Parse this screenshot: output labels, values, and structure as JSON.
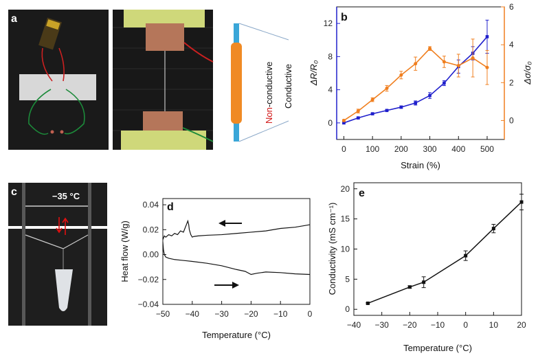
{
  "panels": {
    "a": {
      "label": "a",
      "non_conductive_prefix": "Non",
      "non_conductive_suffix": "-conductive",
      "conductive": "Conductive"
    },
    "c": {
      "label": "c",
      "temperature": "−35 °C"
    }
  },
  "chart_data": [
    {
      "id": "b",
      "type": "line",
      "panel_label": "b",
      "xlabel": "Strain (%)",
      "xlim": [
        -25,
        560
      ],
      "xticks": [
        0,
        100,
        200,
        300,
        400,
        500
      ],
      "ylabel_left": "ΔR/R₀",
      "ylim_left": [
        -2,
        14
      ],
      "yticks_left": [
        0,
        4,
        8,
        12
      ],
      "ylabel_right": "Δσ/σ₀",
      "ylim_right": [
        -1,
        6
      ],
      "yticks_right": [
        0,
        2,
        4,
        6
      ],
      "colors": {
        "left": "#1f1fcc",
        "right": "#f07f1f"
      },
      "series": [
        {
          "axis": "left",
          "x": [
            0,
            50,
            100,
            150,
            200,
            250,
            300,
            350,
            400,
            450,
            500
          ],
          "y": [
            0,
            0.6,
            1.1,
            1.5,
            1.9,
            2.4,
            3.3,
            4.8,
            6.8,
            8.4,
            10.4
          ],
          "err": [
            0.1,
            0.1,
            0.1,
            0.1,
            0.15,
            0.25,
            0.35,
            0.3,
            0.8,
            0.8,
            2.0
          ]
        },
        {
          "axis": "right",
          "x": [
            0,
            50,
            100,
            150,
            200,
            250,
            300,
            350,
            400,
            450,
            500
          ],
          "y": [
            0,
            0.5,
            1.1,
            1.7,
            2.4,
            3.0,
            3.8,
            3.1,
            2.9,
            3.3,
            2.8
          ],
          "err": [
            0.05,
            0.1,
            0.1,
            0.15,
            0.2,
            0.35,
            0.1,
            0.3,
            0.6,
            1.0,
            0.9
          ]
        }
      ]
    },
    {
      "id": "d",
      "type": "line",
      "panel_label": "d",
      "xlabel": "Temperature (°C)",
      "ylabel": "Heat flow (W/g)",
      "xlim": [
        -50,
        0
      ],
      "xticks": [
        -50,
        -40,
        -30,
        -20,
        -10,
        0
      ],
      "ylim": [
        -0.04,
        0.045
      ],
      "yticks": [
        -0.04,
        -0.02,
        0.0,
        0.02,
        0.04
      ],
      "ytick_labels": [
        "−0.04",
        "−0.02",
        "0.00",
        "0.02",
        "0.04"
      ],
      "series": [
        {
          "name": "cooling",
          "x": [
            -50,
            -49.5,
            -49,
            -48,
            -47,
            -46,
            -45,
            -44,
            -43,
            -42.5,
            -42,
            -41.5,
            -41.2,
            -41,
            -40.5,
            -40,
            -39.5,
            -38,
            -35,
            -30,
            -25,
            -20,
            -15,
            -10,
            -5,
            0
          ],
          "y": [
            0.012,
            0.015,
            0.014,
            0.016,
            0.015,
            0.017,
            0.016,
            0.019,
            0.018,
            0.021,
            0.024,
            0.027,
            0.024,
            0.02,
            0.016,
            0.014,
            0.0145,
            0.015,
            0.0155,
            0.016,
            0.017,
            0.018,
            0.019,
            0.021,
            0.022,
            0.024
          ]
        },
        {
          "name": "heating",
          "x": [
            -50,
            -49.8,
            -49.5,
            -49,
            -48,
            -46,
            -44,
            -42,
            -40,
            -35,
            -30,
            -25,
            -22,
            -20,
            -18,
            -15,
            -10,
            -5,
            0
          ],
          "y": [
            0.01,
            0.004,
            0.0,
            -0.002,
            -0.003,
            -0.004,
            -0.0045,
            -0.005,
            -0.0055,
            -0.007,
            -0.009,
            -0.012,
            -0.0135,
            -0.016,
            -0.015,
            -0.014,
            -0.0145,
            -0.0155,
            -0.016
          ]
        }
      ]
    },
    {
      "id": "e",
      "type": "line",
      "panel_label": "e",
      "xlabel": "Temperature (°C)",
      "ylabel": "Conductivity (mS cm⁻¹)",
      "xlim": [
        -40,
        20
      ],
      "xticks": [
        -40,
        -30,
        -20,
        -10,
        0,
        10,
        20
      ],
      "xtick_labels": [
        "−40",
        "−30",
        "−20",
        "−10",
        "0",
        "10",
        "20"
      ],
      "ylim": [
        -1,
        21
      ],
      "yticks": [
        0,
        5,
        10,
        15,
        20
      ],
      "series": [
        {
          "x": [
            -35,
            -20,
            -15,
            0,
            10,
            20
          ],
          "y": [
            1.0,
            3.7,
            4.5,
            8.9,
            13.4,
            17.8
          ],
          "err": [
            0.1,
            0.2,
            0.9,
            0.8,
            0.7,
            1.3
          ]
        }
      ]
    }
  ]
}
